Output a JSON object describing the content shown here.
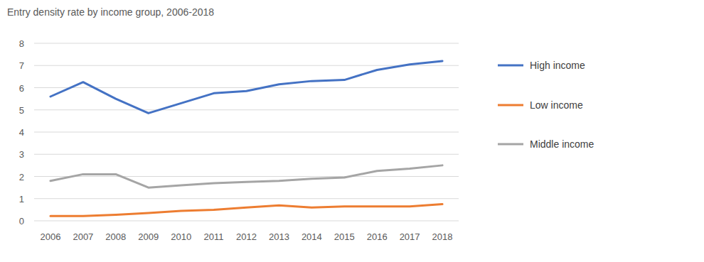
{
  "chart_data": {
    "type": "line",
    "title": "Entry density rate by income group, 2006-2018",
    "categories": [
      "2006",
      "2007",
      "2008",
      "2009",
      "2010",
      "2011",
      "2012",
      "2013",
      "2014",
      "2015",
      "2016",
      "2017",
      "2018"
    ],
    "series": [
      {
        "name": "High income",
        "color": "#4472c4",
        "values": [
          5.6,
          6.25,
          5.5,
          4.85,
          5.3,
          5.75,
          5.85,
          6.15,
          6.3,
          6.35,
          6.8,
          7.05,
          7.2
        ]
      },
      {
        "name": "Low income",
        "color": "#ed7d31",
        "values": [
          0.22,
          0.22,
          0.27,
          0.35,
          0.45,
          0.5,
          0.6,
          0.7,
          0.6,
          0.65,
          0.65,
          0.65,
          0.75
        ]
      },
      {
        "name": "Middle income",
        "color": "#a5a5a5",
        "values": [
          1.8,
          2.1,
          2.1,
          1.5,
          1.6,
          1.7,
          1.75,
          1.8,
          1.9,
          1.95,
          2.25,
          2.35,
          2.5
        ]
      }
    ],
    "ylim": [
      0,
      8
    ],
    "yticks": [
      0,
      1,
      2,
      3,
      4,
      5,
      6,
      7,
      8
    ],
    "grid": true,
    "legend": "right"
  }
}
